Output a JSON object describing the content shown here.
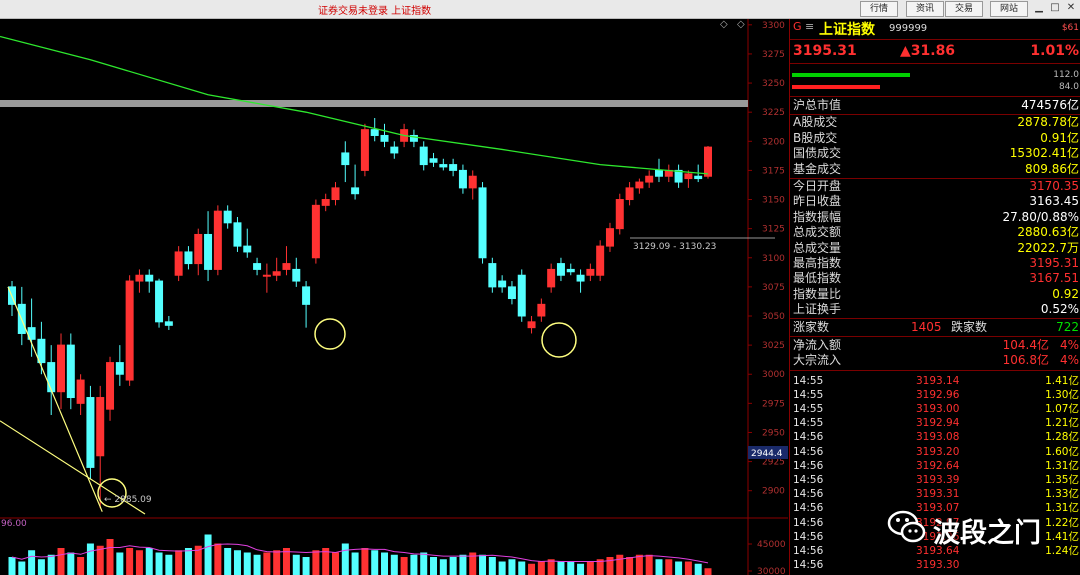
{
  "window": {
    "title": "证券交易未登录  上证指数",
    "buttons": [
      "行情",
      "资讯",
      "交易",
      "网站"
    ]
  },
  "quote": {
    "marker": "G",
    "menu_icon": "≡",
    "name": "上证指数",
    "code": "999999",
    "corner": "$61",
    "price": "3195.31",
    "change": "▲31.86",
    "change_pct": "1.01%",
    "buy_bar_value": "112.0",
    "sell_bar_value": "84.0"
  },
  "stats": [
    {
      "label": "沪总市值",
      "value": "474576亿"
    },
    {
      "label": "A股成交",
      "value": "2878.78亿"
    },
    {
      "label": "B股成交",
      "value": "0.91亿"
    },
    {
      "label": "国债成交",
      "value": "15302.41亿"
    },
    {
      "label": "基金成交",
      "value": "809.86亿"
    },
    {
      "label": "今日开盘",
      "value": "3170.35"
    },
    {
      "label": "昨日收盘",
      "value": "3163.45"
    },
    {
      "label": "指数振幅",
      "value": "27.80/0.88%"
    },
    {
      "label": "总成交额",
      "value": "2880.63亿"
    },
    {
      "label": "总成交量",
      "value": "22022.7万"
    },
    {
      "label": "最高指数",
      "value": "3195.31"
    },
    {
      "label": "最低指数",
      "value": "3167.51"
    },
    {
      "label": "指数量比",
      "value": "0.92"
    },
    {
      "label": "上证换手",
      "value": "0.52%"
    }
  ],
  "breadth": {
    "up_label": "涨家数",
    "up_value": "1405",
    "down_label": "跌家数",
    "down_value": "722"
  },
  "flows": [
    {
      "label": "净流入额",
      "value": "104.4亿",
      "pct": "4%"
    },
    {
      "label": "大宗流入",
      "value": "106.8亿",
      "pct": "4%"
    }
  ],
  "ticks": [
    {
      "time": "14:55",
      "price": "3193.14",
      "vol": "1.41亿"
    },
    {
      "time": "14:55",
      "price": "3192.96",
      "vol": "1.30亿"
    },
    {
      "time": "14:55",
      "price": "3193.00",
      "vol": "1.07亿"
    },
    {
      "time": "14:55",
      "price": "3192.94",
      "vol": "1.21亿"
    },
    {
      "time": "14:56",
      "price": "3193.08",
      "vol": "1.28亿"
    },
    {
      "time": "14:56",
      "price": "3193.20",
      "vol": "1.60亿"
    },
    {
      "time": "14:56",
      "price": "3192.64",
      "vol": "1.31亿"
    },
    {
      "time": "14:56",
      "price": "3193.39",
      "vol": "1.35亿"
    },
    {
      "time": "14:56",
      "price": "3193.31",
      "vol": "1.33亿"
    },
    {
      "time": "14:56",
      "price": "3193.07",
      "vol": "1.31亿"
    },
    {
      "time": "14:56",
      "price": "3192.97",
      "vol": "1.22亿"
    },
    {
      "time": "14:56",
      "price": "3192.96",
      "vol": "1.41亿"
    },
    {
      "time": "14:56",
      "price": "3193.64",
      "vol": "1.24亿"
    },
    {
      "time": "14:56",
      "price": "3193.30",
      "vol": ""
    }
  ],
  "watermark": "波段之门",
  "chart_data": {
    "type": "candlestick",
    "price_axis": {
      "ticks": [
        "3300",
        "3275",
        "3250",
        "3225",
        "3200",
        "3175",
        "3150",
        "3125",
        "3100",
        "3075",
        "3050",
        "3025",
        "3000",
        "2975",
        "2950",
        "2925",
        "2900"
      ],
      "ylim": [
        2880,
        3305
      ]
    },
    "volume_axis": {
      "ticks": [
        "45000",
        "30000"
      ]
    },
    "labels": {
      "low_marker": "2885.09",
      "range_label": "3129.09 - 3130.23",
      "current_badge": "2944.4",
      "volume_value": "96.00"
    },
    "candles": [
      {
        "o": 3075,
        "h": 3080,
        "l": 3050,
        "c": 3060
      },
      {
        "o": 3060,
        "h": 3075,
        "l": 3025,
        "c": 3035
      },
      {
        "o": 3040,
        "h": 3065,
        "l": 3015,
        "c": 3030
      },
      {
        "o": 3030,
        "h": 3045,
        "l": 3000,
        "c": 3010
      },
      {
        "o": 3010,
        "h": 3025,
        "l": 2965,
        "c": 2985
      },
      {
        "o": 2985,
        "h": 3035,
        "l": 2970,
        "c": 3025
      },
      {
        "o": 3025,
        "h": 3035,
        "l": 2970,
        "c": 2980
      },
      {
        "o": 2975,
        "h": 3000,
        "l": 2965,
        "c": 2995
      },
      {
        "o": 2980,
        "h": 2990,
        "l": 2910,
        "c": 2920
      },
      {
        "o": 2930,
        "h": 2990,
        "l": 2885,
        "c": 2980
      },
      {
        "o": 2970,
        "h": 3015,
        "l": 2960,
        "c": 3010
      },
      {
        "o": 3010,
        "h": 3025,
        "l": 2990,
        "c": 3000
      },
      {
        "o": 2995,
        "h": 3085,
        "l": 2990,
        "c": 3080
      },
      {
        "o": 3080,
        "h": 3090,
        "l": 3070,
        "c": 3085
      },
      {
        "o": 3085,
        "h": 3090,
        "l": 3070,
        "c": 3080
      },
      {
        "o": 3080,
        "h": 3082,
        "l": 3040,
        "c": 3045
      },
      {
        "o": 3045,
        "h": 3050,
        "l": 3038,
        "c": 3042
      },
      {
        "o": 3085,
        "h": 3110,
        "l": 3080,
        "c": 3105
      },
      {
        "o": 3105,
        "h": 3110,
        "l": 3090,
        "c": 3095
      },
      {
        "o": 3095,
        "h": 3125,
        "l": 3085,
        "c": 3120
      },
      {
        "o": 3120,
        "h": 3140,
        "l": 3080,
        "c": 3090
      },
      {
        "o": 3090,
        "h": 3145,
        "l": 3085,
        "c": 3140
      },
      {
        "o": 3140,
        "h": 3145,
        "l": 3125,
        "c": 3130
      },
      {
        "o": 3130,
        "h": 3135,
        "l": 3105,
        "c": 3110
      },
      {
        "o": 3110,
        "h": 3125,
        "l": 3100,
        "c": 3105
      },
      {
        "o": 3095,
        "h": 3100,
        "l": 3085,
        "c": 3090
      },
      {
        "o": 3085,
        "h": 3095,
        "l": 3070,
        "c": 3085
      },
      {
        "o": 3085,
        "h": 3100,
        "l": 3080,
        "c": 3088
      },
      {
        "o": 3090,
        "h": 3110,
        "l": 3085,
        "c": 3095
      },
      {
        "o": 3090,
        "h": 3100,
        "l": 3075,
        "c": 3080
      },
      {
        "o": 3075,
        "h": 3080,
        "l": 3040,
        "c": 3060
      },
      {
        "o": 3100,
        "h": 3150,
        "l": 3095,
        "c": 3145
      },
      {
        "o": 3145,
        "h": 3155,
        "l": 3140,
        "c": 3150
      },
      {
        "o": 3150,
        "h": 3165,
        "l": 3145,
        "c": 3160
      },
      {
        "o": 3190,
        "h": 3200,
        "l": 3165,
        "c": 3180
      },
      {
        "o": 3160,
        "h": 3180,
        "l": 3150,
        "c": 3155
      },
      {
        "o": 3175,
        "h": 3215,
        "l": 3170,
        "c": 3210
      },
      {
        "o": 3210,
        "h": 3220,
        "l": 3200,
        "c": 3205
      },
      {
        "o": 3205,
        "h": 3215,
        "l": 3195,
        "c": 3200
      },
      {
        "o": 3195,
        "h": 3200,
        "l": 3185,
        "c": 3190
      },
      {
        "o": 3200,
        "h": 3215,
        "l": 3195,
        "c": 3210
      },
      {
        "o": 3205,
        "h": 3210,
        "l": 3195,
        "c": 3200
      },
      {
        "o": 3195,
        "h": 3200,
        "l": 3175,
        "c": 3180
      },
      {
        "o": 3185,
        "h": 3190,
        "l": 3178,
        "c": 3182
      },
      {
        "o": 3180,
        "h": 3185,
        "l": 3175,
        "c": 3178
      },
      {
        "o": 3180,
        "h": 3185,
        "l": 3170,
        "c": 3175
      },
      {
        "o": 3175,
        "h": 3180,
        "l": 3155,
        "c": 3160
      },
      {
        "o": 3160,
        "h": 3175,
        "l": 3150,
        "c": 3170
      },
      {
        "o": 3160,
        "h": 3165,
        "l": 3095,
        "c": 3100
      },
      {
        "o": 3095,
        "h": 3100,
        "l": 3070,
        "c": 3075
      },
      {
        "o": 3080,
        "h": 3085,
        "l": 3070,
        "c": 3075
      },
      {
        "o": 3075,
        "h": 3080,
        "l": 3060,
        "c": 3065
      },
      {
        "o": 3085,
        "h": 3090,
        "l": 3045,
        "c": 3050
      },
      {
        "o": 3040,
        "h": 3050,
        "l": 3035,
        "c": 3045
      },
      {
        "o": 3050,
        "h": 3065,
        "l": 3045,
        "c": 3060
      },
      {
        "o": 3075,
        "h": 3095,
        "l": 3070,
        "c": 3090
      },
      {
        "o": 3095,
        "h": 3100,
        "l": 3080,
        "c": 3085
      },
      {
        "o": 3090,
        "h": 3095,
        "l": 3085,
        "c": 3088
      },
      {
        "o": 3085,
        "h": 3090,
        "l": 3070,
        "c": 3080
      },
      {
        "o": 3085,
        "h": 3095,
        "l": 3080,
        "c": 3090
      },
      {
        "o": 3085,
        "h": 3115,
        "l": 3080,
        "c": 3110
      },
      {
        "o": 3110,
        "h": 3130,
        "l": 3105,
        "c": 3125
      },
      {
        "o": 3125,
        "h": 3155,
        "l": 3120,
        "c": 3150
      },
      {
        "o": 3150,
        "h": 3165,
        "l": 3145,
        "c": 3160
      },
      {
        "o": 3160,
        "h": 3168,
        "l": 3155,
        "c": 3165
      },
      {
        "o": 3165,
        "h": 3175,
        "l": 3160,
        "c": 3170
      },
      {
        "o": 3175,
        "h": 3185,
        "l": 3165,
        "c": 3170
      },
      {
        "o": 3170,
        "h": 3180,
        "l": 3165,
        "c": 3175
      },
      {
        "o": 3175,
        "h": 3180,
        "l": 3160,
        "c": 3165
      },
      {
        "o": 3168,
        "h": 3175,
        "l": 3160,
        "c": 3172
      },
      {
        "o": 3170,
        "h": 3180,
        "l": 3165,
        "c": 3168
      },
      {
        "o": 3170,
        "h": 3196,
        "l": 3168,
        "c": 3195
      }
    ],
    "ma_line": [
      [
        0,
        3290
      ],
      [
        8,
        3270
      ],
      [
        20,
        3240
      ],
      [
        30,
        3225
      ],
      [
        40,
        3205
      ],
      [
        50,
        3193
      ],
      [
        60,
        3180
      ],
      [
        71,
        3172
      ]
    ],
    "volume": [
      0.4,
      0.3,
      0.55,
      0.35,
      0.45,
      0.6,
      0.5,
      0.4,
      0.7,
      0.65,
      0.8,
      0.5,
      0.6,
      0.55,
      0.6,
      0.5,
      0.45,
      0.55,
      0.6,
      0.65,
      0.9,
      0.7,
      0.6,
      0.55,
      0.5,
      0.45,
      0.5,
      0.55,
      0.6,
      0.45,
      0.4,
      0.55,
      0.6,
      0.5,
      0.7,
      0.5,
      0.6,
      0.55,
      0.5,
      0.45,
      0.4,
      0.45,
      0.5,
      0.4,
      0.35,
      0.4,
      0.45,
      0.5,
      0.45,
      0.4,
      0.3,
      0.35,
      0.3,
      0.25,
      0.3,
      0.35,
      0.3,
      0.3,
      0.25,
      0.3,
      0.35,
      0.4,
      0.45,
      0.4,
      0.45,
      0.45,
      0.35,
      0.35,
      0.3,
      0.3,
      0.25,
      0.15
    ]
  }
}
